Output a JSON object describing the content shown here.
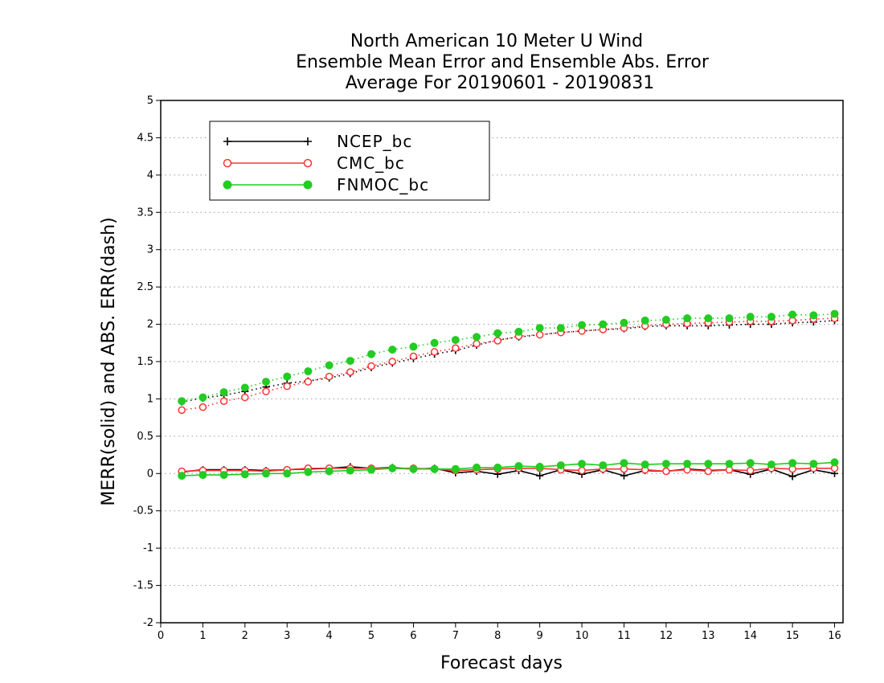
{
  "chart_data": {
    "type": "line",
    "title": [
      "North American 10 Meter U Wind",
      "Ensemble Mean Error and Ensemble Abs. Error",
      "Average For 20190601 - 20190831"
    ],
    "xlabel": "Forecast days",
    "ylabel": "MERR(solid) and ABS. ERR(dash)",
    "xlim": [
      0,
      16.2
    ],
    "ylim": [
      -2,
      5
    ],
    "xticks": [
      0,
      1,
      2,
      3,
      4,
      5,
      6,
      7,
      8,
      9,
      10,
      11,
      12,
      13,
      14,
      15,
      16
    ],
    "xtick_labels": [
      "0",
      "1",
      "2",
      "3",
      "4",
      "5",
      "6",
      "7",
      "8",
      "9",
      "10",
      "11",
      "12",
      "13",
      "14",
      "15",
      "16"
    ],
    "yticks": [
      -2,
      -1.5,
      -1,
      -0.5,
      0,
      0.5,
      1,
      1.5,
      2,
      2.5,
      3,
      3.5,
      4,
      4.5,
      5
    ],
    "ytick_labels": [
      "-2",
      "-1.5",
      "-1",
      "-0.5",
      "0",
      "0.5",
      "1",
      "1.5",
      "2",
      "2.5",
      "3",
      "3.5",
      "4",
      "4.5",
      "5"
    ],
    "grid": "horizontal dotted",
    "legend_position": "top-left",
    "x": [
      0.5,
      1,
      1.5,
      2,
      2.5,
      3,
      3.5,
      4,
      4.5,
      5,
      5.5,
      6,
      6.5,
      7,
      7.5,
      8,
      8.5,
      9,
      9.5,
      10,
      10.5,
      11,
      11.5,
      12,
      12.5,
      13,
      13.5,
      14,
      14.5,
      15,
      15.5,
      16
    ],
    "series": [
      {
        "name": "NCEP_bc",
        "color": "#000000",
        "marker": "plus",
        "merr": [
          0.02,
          0.05,
          0.05,
          0.05,
          0.04,
          0.05,
          0.06,
          0.07,
          0.09,
          0.07,
          0.08,
          0.06,
          0.07,
          0.01,
          0.03,
          -0.01,
          0.04,
          -0.03,
          0.05,
          -0.01,
          0.05,
          -0.03,
          0.04,
          0.03,
          0.06,
          0.04,
          0.05,
          -0.01,
          0.06,
          -0.04,
          0.05,
          0.0
        ],
        "abs_err": [
          0.96,
          1.01,
          1.05,
          1.1,
          1.16,
          1.21,
          1.24,
          1.28,
          1.34,
          1.42,
          1.48,
          1.54,
          1.6,
          1.65,
          1.72,
          1.79,
          1.83,
          1.86,
          1.89,
          1.91,
          1.93,
          1.94,
          1.97,
          1.98,
          1.98,
          1.98,
          1.99,
          2.0,
          2.0,
          2.02,
          2.03,
          2.05
        ]
      },
      {
        "name": "CMC_bc",
        "color": "#ff3333",
        "marker": "open-circle",
        "merr": [
          0.03,
          0.04,
          0.04,
          0.04,
          0.03,
          0.05,
          0.07,
          0.07,
          0.07,
          0.07,
          0.07,
          0.07,
          0.06,
          0.04,
          0.05,
          0.06,
          0.07,
          0.07,
          0.05,
          0.04,
          0.06,
          0.06,
          0.05,
          0.03,
          0.05,
          0.03,
          0.05,
          0.04,
          0.07,
          0.06,
          0.07,
          0.07
        ],
        "abs_err": [
          0.85,
          0.89,
          0.97,
          1.02,
          1.1,
          1.17,
          1.23,
          1.3,
          1.36,
          1.44,
          1.5,
          1.57,
          1.63,
          1.68,
          1.74,
          1.78,
          1.84,
          1.86,
          1.89,
          1.91,
          1.93,
          1.95,
          1.98,
          2.0,
          2.01,
          2.02,
          2.03,
          2.04,
          2.04,
          2.05,
          2.07,
          2.08
        ]
      },
      {
        "name": "FNMOC_bc",
        "color": "#22cc22",
        "marker": "filled-circle",
        "merr": [
          -0.03,
          -0.02,
          -0.02,
          -0.01,
          0.0,
          0.0,
          0.02,
          0.03,
          0.04,
          0.05,
          0.07,
          0.06,
          0.06,
          0.06,
          0.08,
          0.08,
          0.1,
          0.09,
          0.11,
          0.13,
          0.11,
          0.14,
          0.12,
          0.13,
          0.13,
          0.13,
          0.13,
          0.14,
          0.12,
          0.14,
          0.13,
          0.15
        ],
        "abs_err": [
          0.97,
          1.02,
          1.09,
          1.15,
          1.23,
          1.3,
          1.37,
          1.45,
          1.51,
          1.6,
          1.66,
          1.7,
          1.75,
          1.79,
          1.83,
          1.88,
          1.9,
          1.95,
          1.95,
          1.99,
          2.0,
          2.02,
          2.05,
          2.06,
          2.08,
          2.08,
          2.08,
          2.1,
          2.1,
          2.13,
          2.12,
          2.14
        ]
      }
    ]
  }
}
